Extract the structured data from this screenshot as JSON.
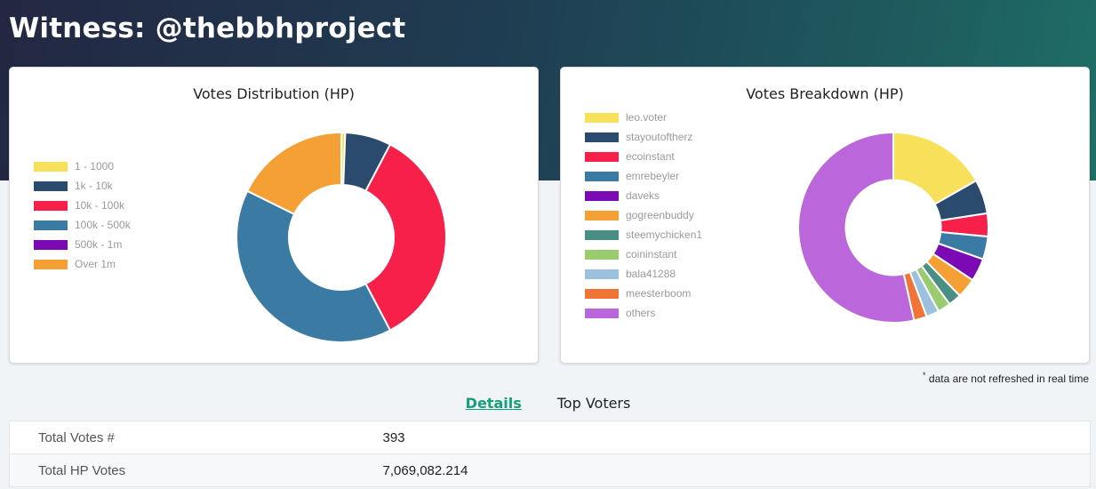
{
  "header": {
    "title": "Witness: @thebbhproject"
  },
  "cards": {
    "distribution": {
      "title": "Votes Distribution (HP)",
      "legend": [
        {
          "label": "1 - 1000",
          "color": "#f7e05a"
        },
        {
          "label": "1k - 10k",
          "color": "#2a4a6e"
        },
        {
          "label": "10k - 100k",
          "color": "#f7204a"
        },
        {
          "label": "100k - 500k",
          "color": "#3a7aa3"
        },
        {
          "label": "500k - 1m",
          "color": "#7b0ab4"
        },
        {
          "label": "Over 1m",
          "color": "#f4a034"
        }
      ]
    },
    "breakdown": {
      "title": "Votes Breakdown (HP)",
      "legend": [
        {
          "label": "leo.voter",
          "color": "#f7e05a"
        },
        {
          "label": "stayoutoftherz",
          "color": "#2a4a6e"
        },
        {
          "label": "ecoinstant",
          "color": "#f7204a"
        },
        {
          "label": "emrebeyler",
          "color": "#3a7aa3"
        },
        {
          "label": "daveks",
          "color": "#7b0ab4"
        },
        {
          "label": "gogreenbuddy",
          "color": "#f4a034"
        },
        {
          "label": "steemychicken1",
          "color": "#4a8f86"
        },
        {
          "label": "coininstant",
          "color": "#98cc6e"
        },
        {
          "label": "bala41288",
          "color": "#9cc1de"
        },
        {
          "label": "meesterboom",
          "color": "#ef7435"
        },
        {
          "label": "others",
          "color": "#bb66db"
        }
      ]
    }
  },
  "chart_data": [
    {
      "type": "pie",
      "title": "Votes Distribution (HP)",
      "categories": [
        "1 - 1000",
        "1k - 10k",
        "10k - 100k",
        "100k - 500k",
        "500k - 1m",
        "Over 1m"
      ],
      "values": [
        0.6,
        7.1,
        34.6,
        40.0,
        0,
        17.7
      ],
      "colors": [
        "#f7e05a",
        "#2a4a6e",
        "#f7204a",
        "#3a7aa3",
        "#7b0ab4",
        "#f4a034"
      ]
    },
    {
      "type": "pie",
      "title": "Votes Breakdown (HP)",
      "categories": [
        "leo.voter",
        "stayoutoftherz",
        "ecoinstant",
        "emrebeyler",
        "daveks",
        "gogreenbuddy",
        "steemychicken1",
        "coininstant",
        "bala41288",
        "meesterboom",
        "others"
      ],
      "values": [
        16.8,
        5.8,
        3.9,
        3.9,
        3.9,
        3.4,
        2.2,
        2.2,
        2.2,
        2.2,
        53.5
      ],
      "colors": [
        "#f7e05a",
        "#2a4a6e",
        "#f7204a",
        "#3a7aa3",
        "#7b0ab4",
        "#f4a034",
        "#4a8f86",
        "#98cc6e",
        "#9cc1de",
        "#ef7435",
        "#bb66db"
      ]
    }
  ],
  "note": {
    "star": "*",
    "text": " data are not refreshed in real time"
  },
  "tabs": [
    {
      "label": "Details",
      "active": true
    },
    {
      "label": "Top Voters",
      "active": false
    }
  ],
  "details": [
    {
      "key": "Total Votes #",
      "value": "393"
    },
    {
      "key": "Total HP Votes",
      "value": "7,069,082.214"
    }
  ]
}
